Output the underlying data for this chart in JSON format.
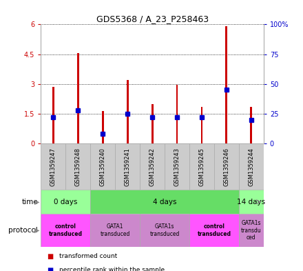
{
  "title": "GDS5368 / A_23_P258463",
  "samples": [
    "GSM1359247",
    "GSM1359248",
    "GSM1359240",
    "GSM1359241",
    "GSM1359242",
    "GSM1359243",
    "GSM1359245",
    "GSM1359246",
    "GSM1359244"
  ],
  "transformed_counts": [
    2.85,
    4.55,
    1.65,
    3.2,
    2.0,
    2.95,
    1.85,
    5.9,
    1.85
  ],
  "percentile_ranks": [
    22,
    28,
    8,
    25,
    22,
    22,
    22,
    45,
    20
  ],
  "ylim_left": [
    0,
    6
  ],
  "ylim_right": [
    0,
    100
  ],
  "yticks_left": [
    0,
    1.5,
    3.0,
    4.5,
    6.0
  ],
  "yticks_right": [
    0,
    25,
    50,
    75,
    100
  ],
  "ytick_labels_left": [
    "0",
    "1.5",
    "3",
    "4.5",
    "6"
  ],
  "ytick_labels_right": [
    "0",
    "25",
    "50",
    "75",
    "100%"
  ],
  "bar_color": "#cc0000",
  "dot_color": "#0000cc",
  "grid_color": "#000000",
  "time_groups": [
    {
      "label": "0 days",
      "start": 0,
      "end": 2,
      "color": "#99ff99"
    },
    {
      "label": "4 days",
      "start": 2,
      "end": 8,
      "color": "#66dd66"
    },
    {
      "label": "14 days",
      "start": 8,
      "end": 9,
      "color": "#99ff99"
    }
  ],
  "protocol_groups": [
    {
      "label": "control\ntransduced",
      "start": 0,
      "end": 2,
      "color": "#ff55ff",
      "bold": true
    },
    {
      "label": "GATA1\ntransduced",
      "start": 2,
      "end": 4,
      "color": "#cc88cc",
      "bold": false
    },
    {
      "label": "GATA1s\ntransduced",
      "start": 4,
      "end": 6,
      "color": "#cc88cc",
      "bold": false
    },
    {
      "label": "control\ntransduced",
      "start": 6,
      "end": 8,
      "color": "#ff55ff",
      "bold": true
    },
    {
      "label": "GATA1s\ntransdu\nced",
      "start": 8,
      "end": 9,
      "color": "#cc88cc",
      "bold": false
    }
  ],
  "legend_items": [
    {
      "label": "transformed count",
      "color": "#cc0000"
    },
    {
      "label": "percentile rank within the sample",
      "color": "#0000cc"
    }
  ],
  "sample_bg_color": "#cccccc",
  "sample_border_color": "#aaaaaa",
  "fig_width": 4.4,
  "fig_height": 3.93,
  "dpi": 100
}
